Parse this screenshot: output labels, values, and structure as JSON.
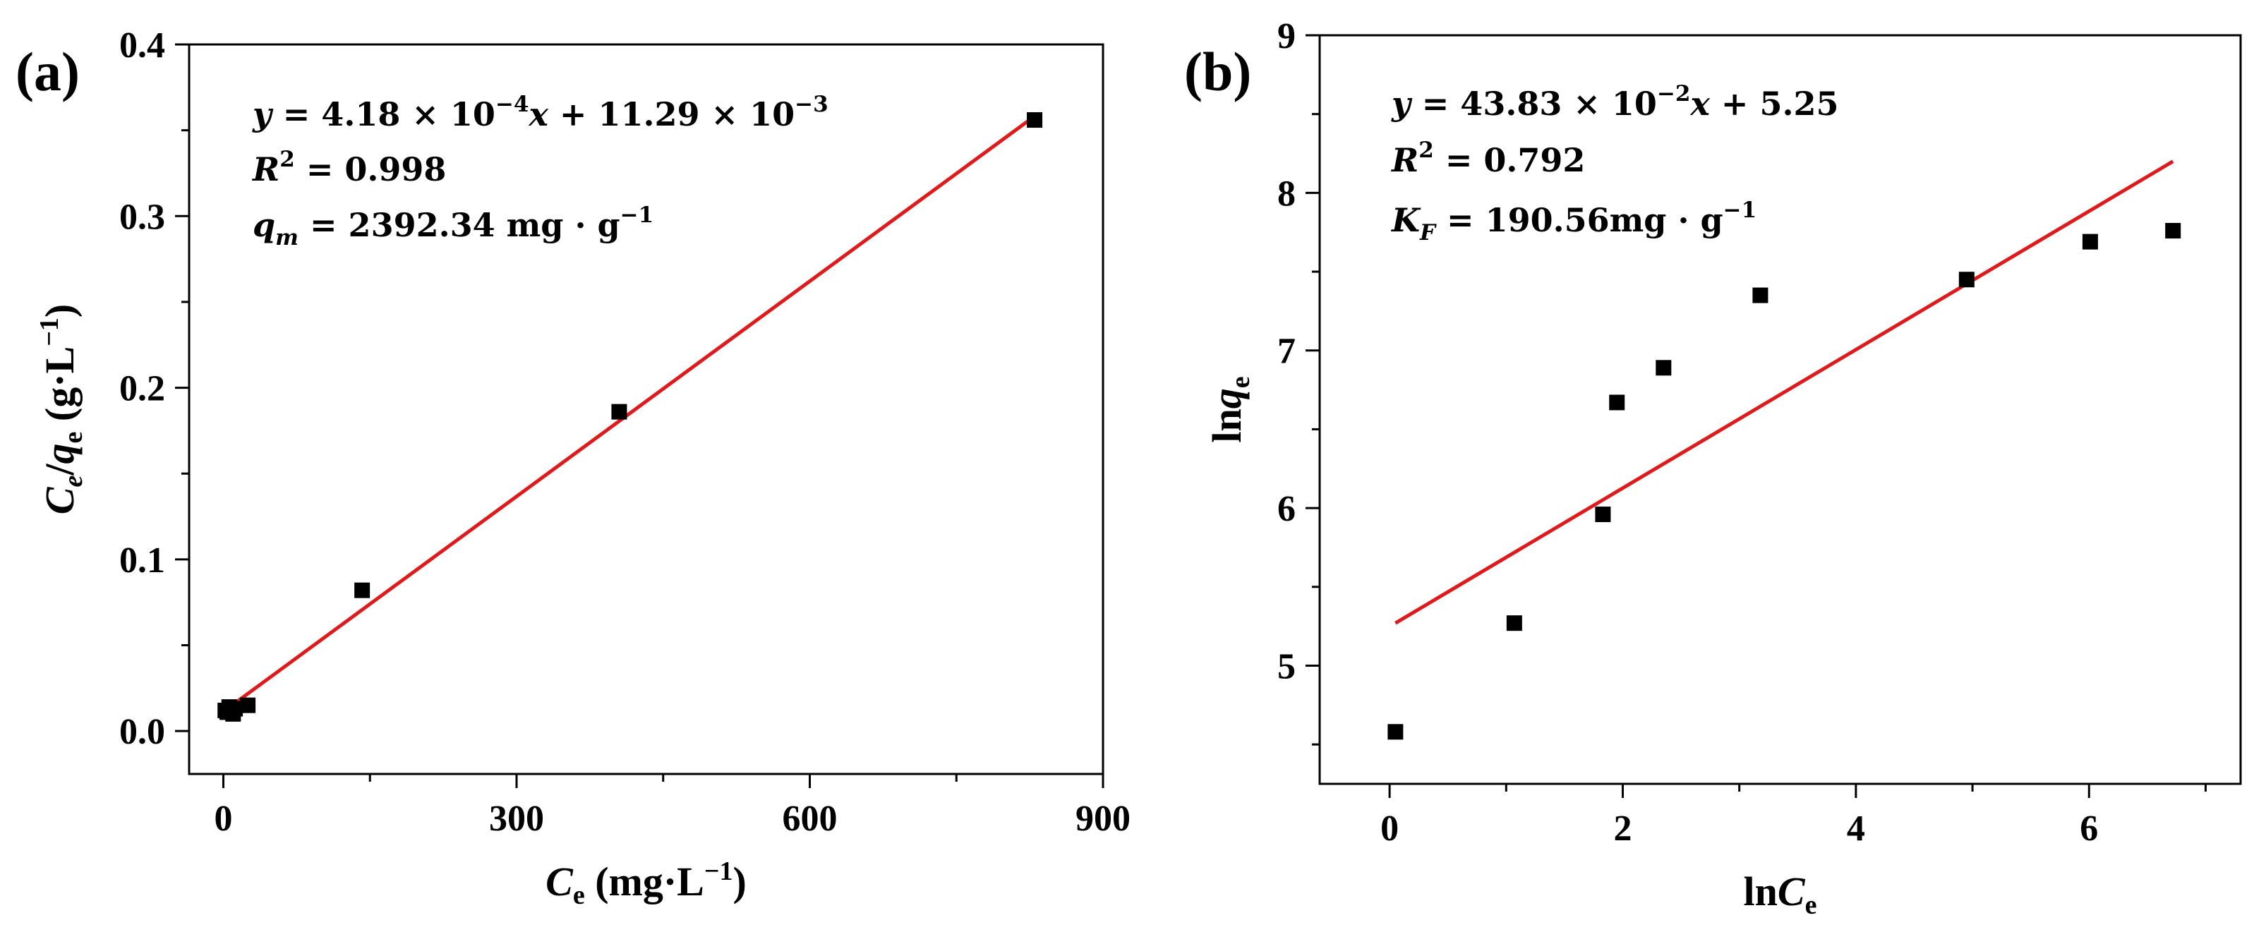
{
  "colors": {
    "axis": "#000000",
    "marker": "#000000",
    "fit_line": "#e0191b",
    "background": "#ffffff"
  },
  "chart_data": [
    {
      "panel_label": "(a)",
      "type": "scatter",
      "xlabel": {
        "main": "C",
        "sub": "e",
        "unit": " (mg·L",
        "exp": "−1",
        "close": ")"
      },
      "ylabel": {
        "main": "C",
        "sub1": "e",
        "slash": "/",
        "q": "q",
        "sub2": "e",
        "unit": " (g·L",
        "exp": "−1",
        "close": ")"
      },
      "xlim": [
        -35,
        900
      ],
      "ylim": [
        -0.025,
        0.4
      ],
      "xticks": [
        0,
        300,
        600,
        900
      ],
      "xticklabels": [
        "0",
        "300",
        "600",
        "900"
      ],
      "yticks": [
        0.0,
        0.1,
        0.2,
        0.3,
        0.4
      ],
      "yticklabels": [
        "0.0",
        "0.1",
        "0.2",
        "0.3",
        "0.4"
      ],
      "x": [
        2,
        4,
        6,
        10,
        12,
        25,
        142,
        405,
        830
      ],
      "y": [
        0.012,
        0.011,
        0.014,
        0.01,
        0.013,
        0.015,
        0.082,
        0.186,
        0.356
      ],
      "fit": {
        "x": [
          0,
          830
        ],
        "y": [
          0.0113,
          0.3582
        ]
      },
      "annotations": [
        {
          "parts": [
            [
              "y",
              "i"
            ],
            [
              " = 4.18 × 10",
              "n"
            ],
            [
              "−4",
              "sup"
            ],
            [
              "x",
              "i"
            ],
            [
              " + 11.29 × 10",
              "n"
            ],
            [
              "−3",
              "sup"
            ]
          ]
        },
        {
          "parts": [
            [
              "R",
              "i"
            ],
            [
              "2",
              "sup"
            ],
            [
              " = 0.998",
              "n"
            ]
          ]
        },
        {
          "parts": [
            [
              "q",
              "i"
            ],
            [
              "m",
              "subi"
            ],
            [
              " = 2392.34 mg · g",
              "n"
            ],
            [
              "−1",
              "sup"
            ]
          ]
        }
      ]
    },
    {
      "panel_label": "(b)",
      "type": "scatter",
      "xlabel": {
        "pre": "ln",
        "main": "C",
        "sub": "e"
      },
      "ylabel": {
        "pre": "ln",
        "main": "q",
        "sub": "e"
      },
      "xlim": [
        -0.6,
        7.3
      ],
      "ylim": [
        4.25,
        9
      ],
      "xticks": [
        0,
        2,
        4,
        6
      ],
      "xticklabels": [
        "0",
        "2",
        "4",
        "6"
      ],
      "yticks": [
        5,
        6,
        7,
        8,
        9
      ],
      "yticklabels": [
        "5",
        "6",
        "7",
        "8",
        "9"
      ],
      "x": [
        0.05,
        1.07,
        1.83,
        1.95,
        2.35,
        3.18,
        4.95,
        6.01,
        6.72
      ],
      "y": [
        4.58,
        5.27,
        5.96,
        6.67,
        6.89,
        7.35,
        7.45,
        7.69,
        7.76
      ],
      "fit": {
        "x": [
          0.05,
          6.72
        ],
        "y": [
          5.27,
          8.2
        ]
      },
      "annotations": [
        {
          "parts": [
            [
              "y",
              "i"
            ],
            [
              " = 43.83 × 10",
              "n"
            ],
            [
              "−2",
              "sup"
            ],
            [
              "x",
              "i"
            ],
            [
              " + 5.25",
              "n"
            ]
          ]
        },
        {
          "parts": [
            [
              "R",
              "i"
            ],
            [
              "2",
              "sup"
            ],
            [
              " = 0.792",
              "n"
            ]
          ]
        },
        {
          "parts": [
            [
              "K",
              "i"
            ],
            [
              "F",
              "subi"
            ],
            [
              " = 190.56mg · g",
              "n"
            ],
            [
              "−1",
              "sup"
            ]
          ]
        }
      ]
    }
  ]
}
